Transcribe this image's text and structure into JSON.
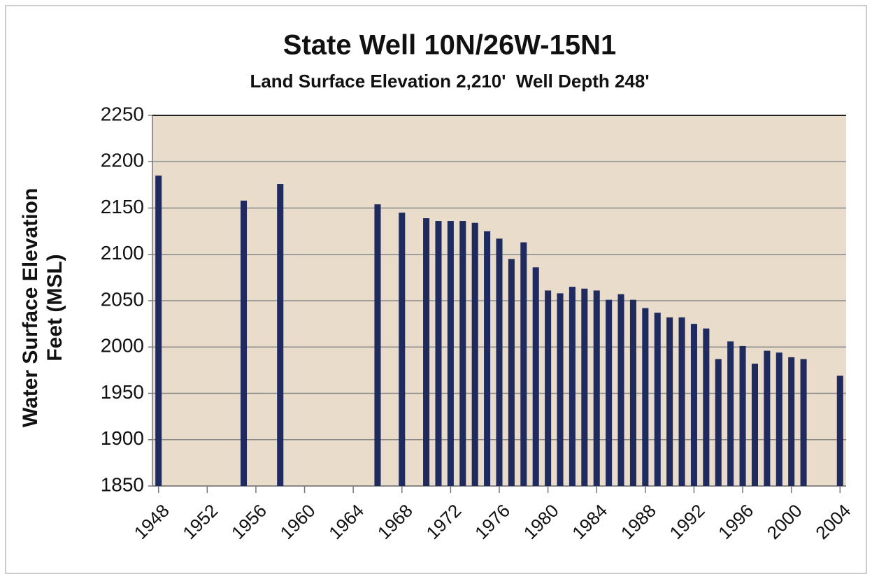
{
  "chart_data": {
    "type": "bar",
    "title": "State Well 10N/26W-15N1",
    "subtitle": "Land Surface Elevation 2,210'  Well Depth 248'",
    "y_label": [
      "Water Surface Elevation",
      "Feet (MSL)"
    ],
    "x": [
      1948,
      1955,
      1958,
      1966,
      1968,
      1970,
      1971,
      1972,
      1973,
      1974,
      1975,
      1976,
      1977,
      1978,
      1979,
      1980,
      1981,
      1982,
      1983,
      1984,
      1985,
      1986,
      1987,
      1988,
      1989,
      1990,
      1991,
      1992,
      1993,
      1994,
      1995,
      1996,
      1997,
      1998,
      1999,
      2000,
      2001,
      2004
    ],
    "values": [
      2185,
      2158,
      2176,
      2154,
      2145,
      2139,
      2136,
      2136,
      2136,
      2134,
      2125,
      2117,
      2095,
      2113,
      2086,
      2061,
      2058,
      2065,
      2063,
      2061,
      2051,
      2057,
      2051,
      2042,
      2037,
      2032,
      2032,
      2025,
      2020,
      1987,
      2006,
      2001,
      1982,
      1996,
      1994,
      1989,
      1987,
      1969
    ],
    "color": "#1f2b5e",
    "xlim": [
      1947.5,
      2004.5
    ],
    "xticks": [
      1948,
      1952,
      1956,
      1960,
      1964,
      1968,
      1972,
      1976,
      1980,
      1984,
      1988,
      1992,
      1996,
      2000,
      2004
    ],
    "ylim": [
      1850,
      2250
    ],
    "yticks": [
      1850,
      1900,
      1950,
      2000,
      2050,
      2100,
      2150,
      2200,
      2250
    ],
    "grid": true
  }
}
